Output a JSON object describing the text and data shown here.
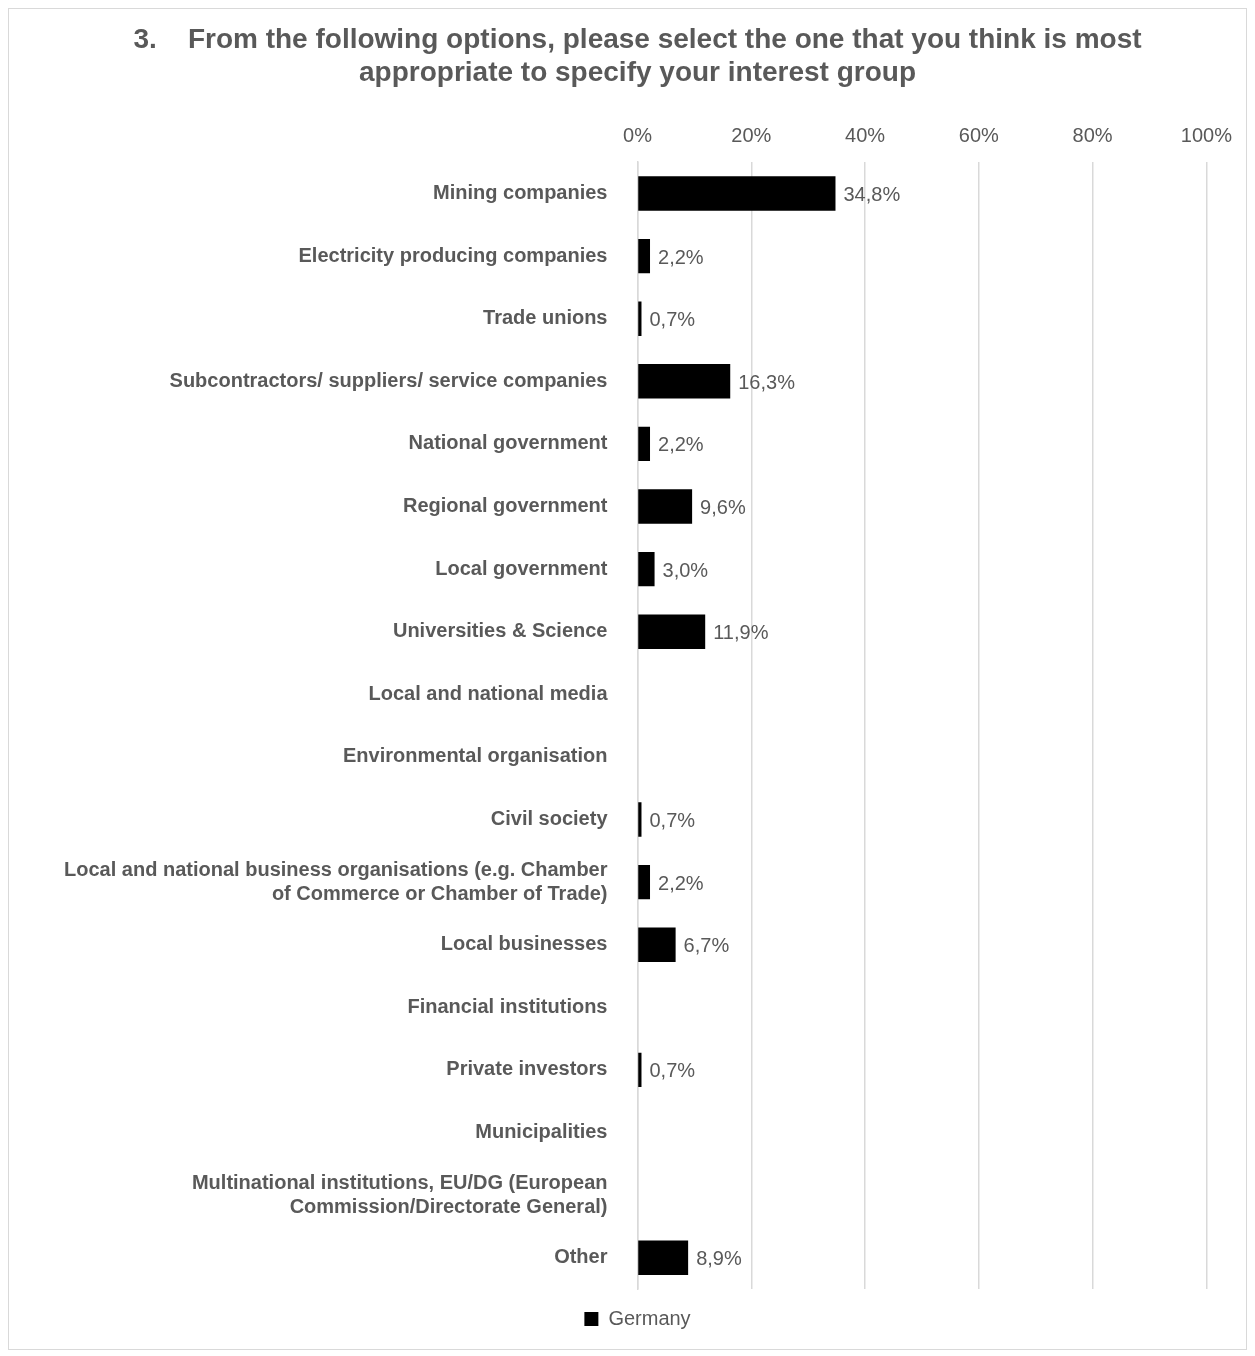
{
  "chart_data": {
    "type": "bar",
    "orientation": "horizontal",
    "title": "3.    From the following options, please select the one that you think is most appropriate to specify your interest group",
    "categories": [
      "Mining companies",
      "Electricity producing companies",
      "Trade unions",
      "Subcontractors/ suppliers/ service companies",
      "National government",
      "Regional government",
      "Local government",
      "Universities & Science",
      "Local and national media",
      "Environmental organisation",
      "Civil society",
      "Local and national business organisations (e.g. Chamber of Commerce or Chamber of Trade)",
      "Local businesses",
      "Financial institutions",
      "Private investors",
      "Municipalities",
      "Multinational institutions, EU/DG (European Commission/Directorate General)",
      "Other"
    ],
    "series": [
      {
        "name": "Germany",
        "color": "#000000",
        "values": [
          34.8,
          2.2,
          0.7,
          16.3,
          2.2,
          9.6,
          3.0,
          11.9,
          null,
          null,
          0.7,
          2.2,
          6.7,
          null,
          0.7,
          null,
          null,
          8.9
        ],
        "value_labels": [
          "34,8%",
          "2,2%",
          "0,7%",
          "16,3%",
          "2,2%",
          "9,6%",
          "3,0%",
          "11,9%",
          null,
          null,
          "0,7%",
          "2,2%",
          "6,7%",
          null,
          "0,7%",
          null,
          null,
          "8,9%"
        ]
      }
    ],
    "xlim": [
      0,
      100
    ],
    "xticks": [
      {
        "value": 0,
        "label": "0%"
      },
      {
        "value": 20,
        "label": "20%"
      },
      {
        "value": 40,
        "label": "40%"
      },
      {
        "value": 60,
        "label": "60%"
      },
      {
        "value": 80,
        "label": "80%"
      },
      {
        "value": 100,
        "label": "100%"
      }
    ],
    "grid": "x",
    "legend": "bottom"
  }
}
